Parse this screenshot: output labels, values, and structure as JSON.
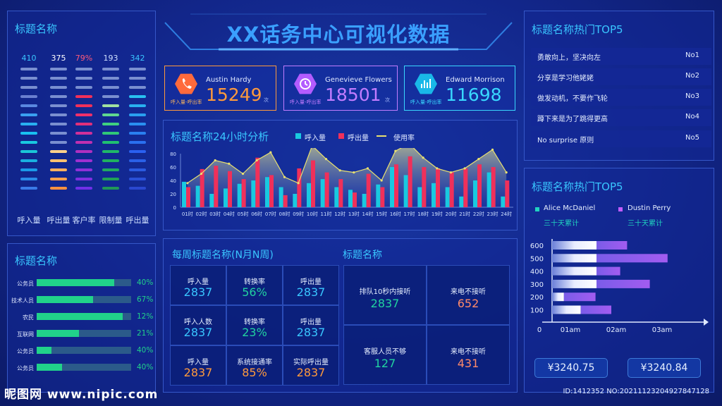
{
  "title": "XX话务中心可视化数据",
  "left_top": {
    "title": "标题名称",
    "columns": [
      {
        "value": "410",
        "label": "呼入量",
        "color": "#39c6ff"
      },
      {
        "value": "375",
        "label": "呼出量",
        "color": "#ffffff"
      },
      {
        "value": "79%",
        "label": "客户率",
        "color": "#ff5a7a"
      },
      {
        "value": "193",
        "label": "限制量",
        "color": "#cfe0ff"
      },
      {
        "value": "342",
        "label": "呼出量",
        "color": "#39c6ff"
      }
    ]
  },
  "kpis": [
    {
      "name": "Austin Hardy",
      "value": "15249",
      "sub": "呼入量-呼出率",
      "unit": "次",
      "color": "#ff9a3c"
    },
    {
      "name": "Genevieve Flowers",
      "value": "18501",
      "sub": "呼入量-呼出率",
      "unit": "次",
      "color": "#c27cff"
    },
    {
      "name": "Edward Morrison",
      "value": "11698",
      "sub": "呼入量-呼出率",
      "unit": "",
      "color": "#39d8ff"
    }
  ],
  "chart_panel": {
    "title": "标题名称24小时分析",
    "legend": [
      "呼入量",
      "呼出量",
      "使用率"
    ]
  },
  "chart_data": {
    "type": "bar",
    "title": "标题名称24小时分析",
    "categories": [
      "01时",
      "02时",
      "03时",
      "04时",
      "05时",
      "06时",
      "07时",
      "08时",
      "09时",
      "10时",
      "11时",
      "12时",
      "13时",
      "14时",
      "15时",
      "16时",
      "17时",
      "18时",
      "19时",
      "20时",
      "21时",
      "22时",
      "23时",
      "24时"
    ],
    "ylim": [
      0,
      80
    ],
    "yticks": [
      0,
      20,
      40,
      60,
      80
    ],
    "series": [
      {
        "name": "呼入量",
        "type": "bar",
        "color": "#19c9e0",
        "values": [
          38,
          32,
          20,
          28,
          35,
          40,
          45,
          30,
          20,
          36,
          42,
          30,
          26,
          20,
          34,
          60,
          48,
          30,
          36,
          30,
          16,
          40,
          52,
          16
        ]
      },
      {
        "name": "呼出量",
        "type": "bar",
        "color": "#f0305a",
        "values": [
          30,
          57,
          62,
          54,
          42,
          74,
          48,
          18,
          58,
          70,
          52,
          42,
          22,
          50,
          30,
          64,
          76,
          60,
          58,
          52,
          58,
          64,
          60,
          40
        ]
      },
      {
        "name": "使用率",
        "type": "line",
        "color": "#e8e070",
        "values": [
          36,
          50,
          70,
          65,
          50,
          70,
          82,
          45,
          36,
          92,
          72,
          55,
          52,
          58,
          40,
          84,
          95,
          74,
          58,
          52,
          58,
          72,
          86,
          52
        ]
      }
    ]
  },
  "top5": {
    "title": "标题名称热门TOP5",
    "rows": [
      {
        "text": "勇敢向上，坚决向左",
        "rank": "No1"
      },
      {
        "text": "分享是学习他姥姥",
        "rank": "No2"
      },
      {
        "text": "做发动机，不要作飞轮",
        "rank": "No3"
      },
      {
        "text": "蹲下来是为了跳得更高",
        "rank": "No4"
      },
      {
        "text": "No surprise 原则",
        "rank": "No5"
      }
    ]
  },
  "left_bottom": {
    "title": "标题名称",
    "rows": [
      {
        "label": "公务员",
        "pct": "40%",
        "fill": 0.82
      },
      {
        "label": "技术人员",
        "pct": "67%",
        "fill": 0.6
      },
      {
        "label": "农民",
        "pct": "12%",
        "fill": 0.91
      },
      {
        "label": "互联网",
        "pct": "21%",
        "fill": 0.45
      },
      {
        "label": "公务员",
        "pct": "40%",
        "fill": 0.16
      },
      {
        "label": "公务员",
        "pct": "40%",
        "fill": 0.27
      }
    ]
  },
  "weekly": {
    "title": "每周标题名称(N月N周)",
    "cells": [
      {
        "label": "呼入量",
        "value": "2837",
        "color": "#39c6ff"
      },
      {
        "label": "转换率",
        "value": "56%",
        "color": "#21d2a0"
      },
      {
        "label": "呼出量",
        "value": "2837",
        "color": "#39c6ff"
      },
      {
        "label": "呼入人数",
        "value": "2837",
        "color": "#39c6ff"
      },
      {
        "label": "转换率",
        "value": "23%",
        "color": "#21d2a0"
      },
      {
        "label": "呼出量",
        "value": "2837",
        "color": "#39c6ff"
      },
      {
        "label": "呼入量",
        "value": "2837",
        "color": "#ff9a3c"
      },
      {
        "label": "系统接通率",
        "value": "85%",
        "color": "#ff9a3c"
      },
      {
        "label": "实际呼出量",
        "value": "2837",
        "color": "#ff9a3c"
      }
    ]
  },
  "queue": {
    "title": "标题名称",
    "cells": [
      {
        "label": "排队10秒内接听",
        "value": "2837",
        "color": "#21d2a0"
      },
      {
        "label": "来电不接听",
        "value": "652",
        "color": "#ff8a6a"
      },
      {
        "label": "客服人员不够",
        "value": "127",
        "color": "#21d2a0"
      },
      {
        "label": "来电不接听",
        "value": "431",
        "color": "#ff8a6a"
      }
    ]
  },
  "right_bottom": {
    "title": "标题名称热门TOP5",
    "legend": [
      {
        "name": "Alice McDaniel",
        "sub": "三十天累计",
        "color": "#21d2c0"
      },
      {
        "name": "Dustin Perry",
        "sub": "三十天累计",
        "color": "#c25cff"
      }
    ],
    "y_labels": [
      "600",
      "500",
      "400",
      "300",
      "200",
      "100"
    ],
    "x_labels": [
      "0",
      "01am",
      "02am",
      "03am"
    ],
    "money": [
      "¥3240.75",
      "¥3240.84"
    ]
  },
  "hbar_data": {
    "type": "bar",
    "orientation": "horizontal",
    "categories": [
      "600",
      "500",
      "400",
      "300",
      "200",
      "100"
    ],
    "series": [
      {
        "name": "Alice McDaniel",
        "values": [
          2.25,
          2.25,
          2.25,
          2.25,
          0.6,
          1.45
        ]
      },
      {
        "name": "Dustin Perry",
        "values": [
          1.55,
          3.6,
          1.2,
          2.7,
          1.6,
          1.55
        ]
      }
    ]
  },
  "watermark": {
    "logo": "昵图网 www.nipic.com",
    "id": "ID:1412352 NO:20211123204927847128"
  }
}
